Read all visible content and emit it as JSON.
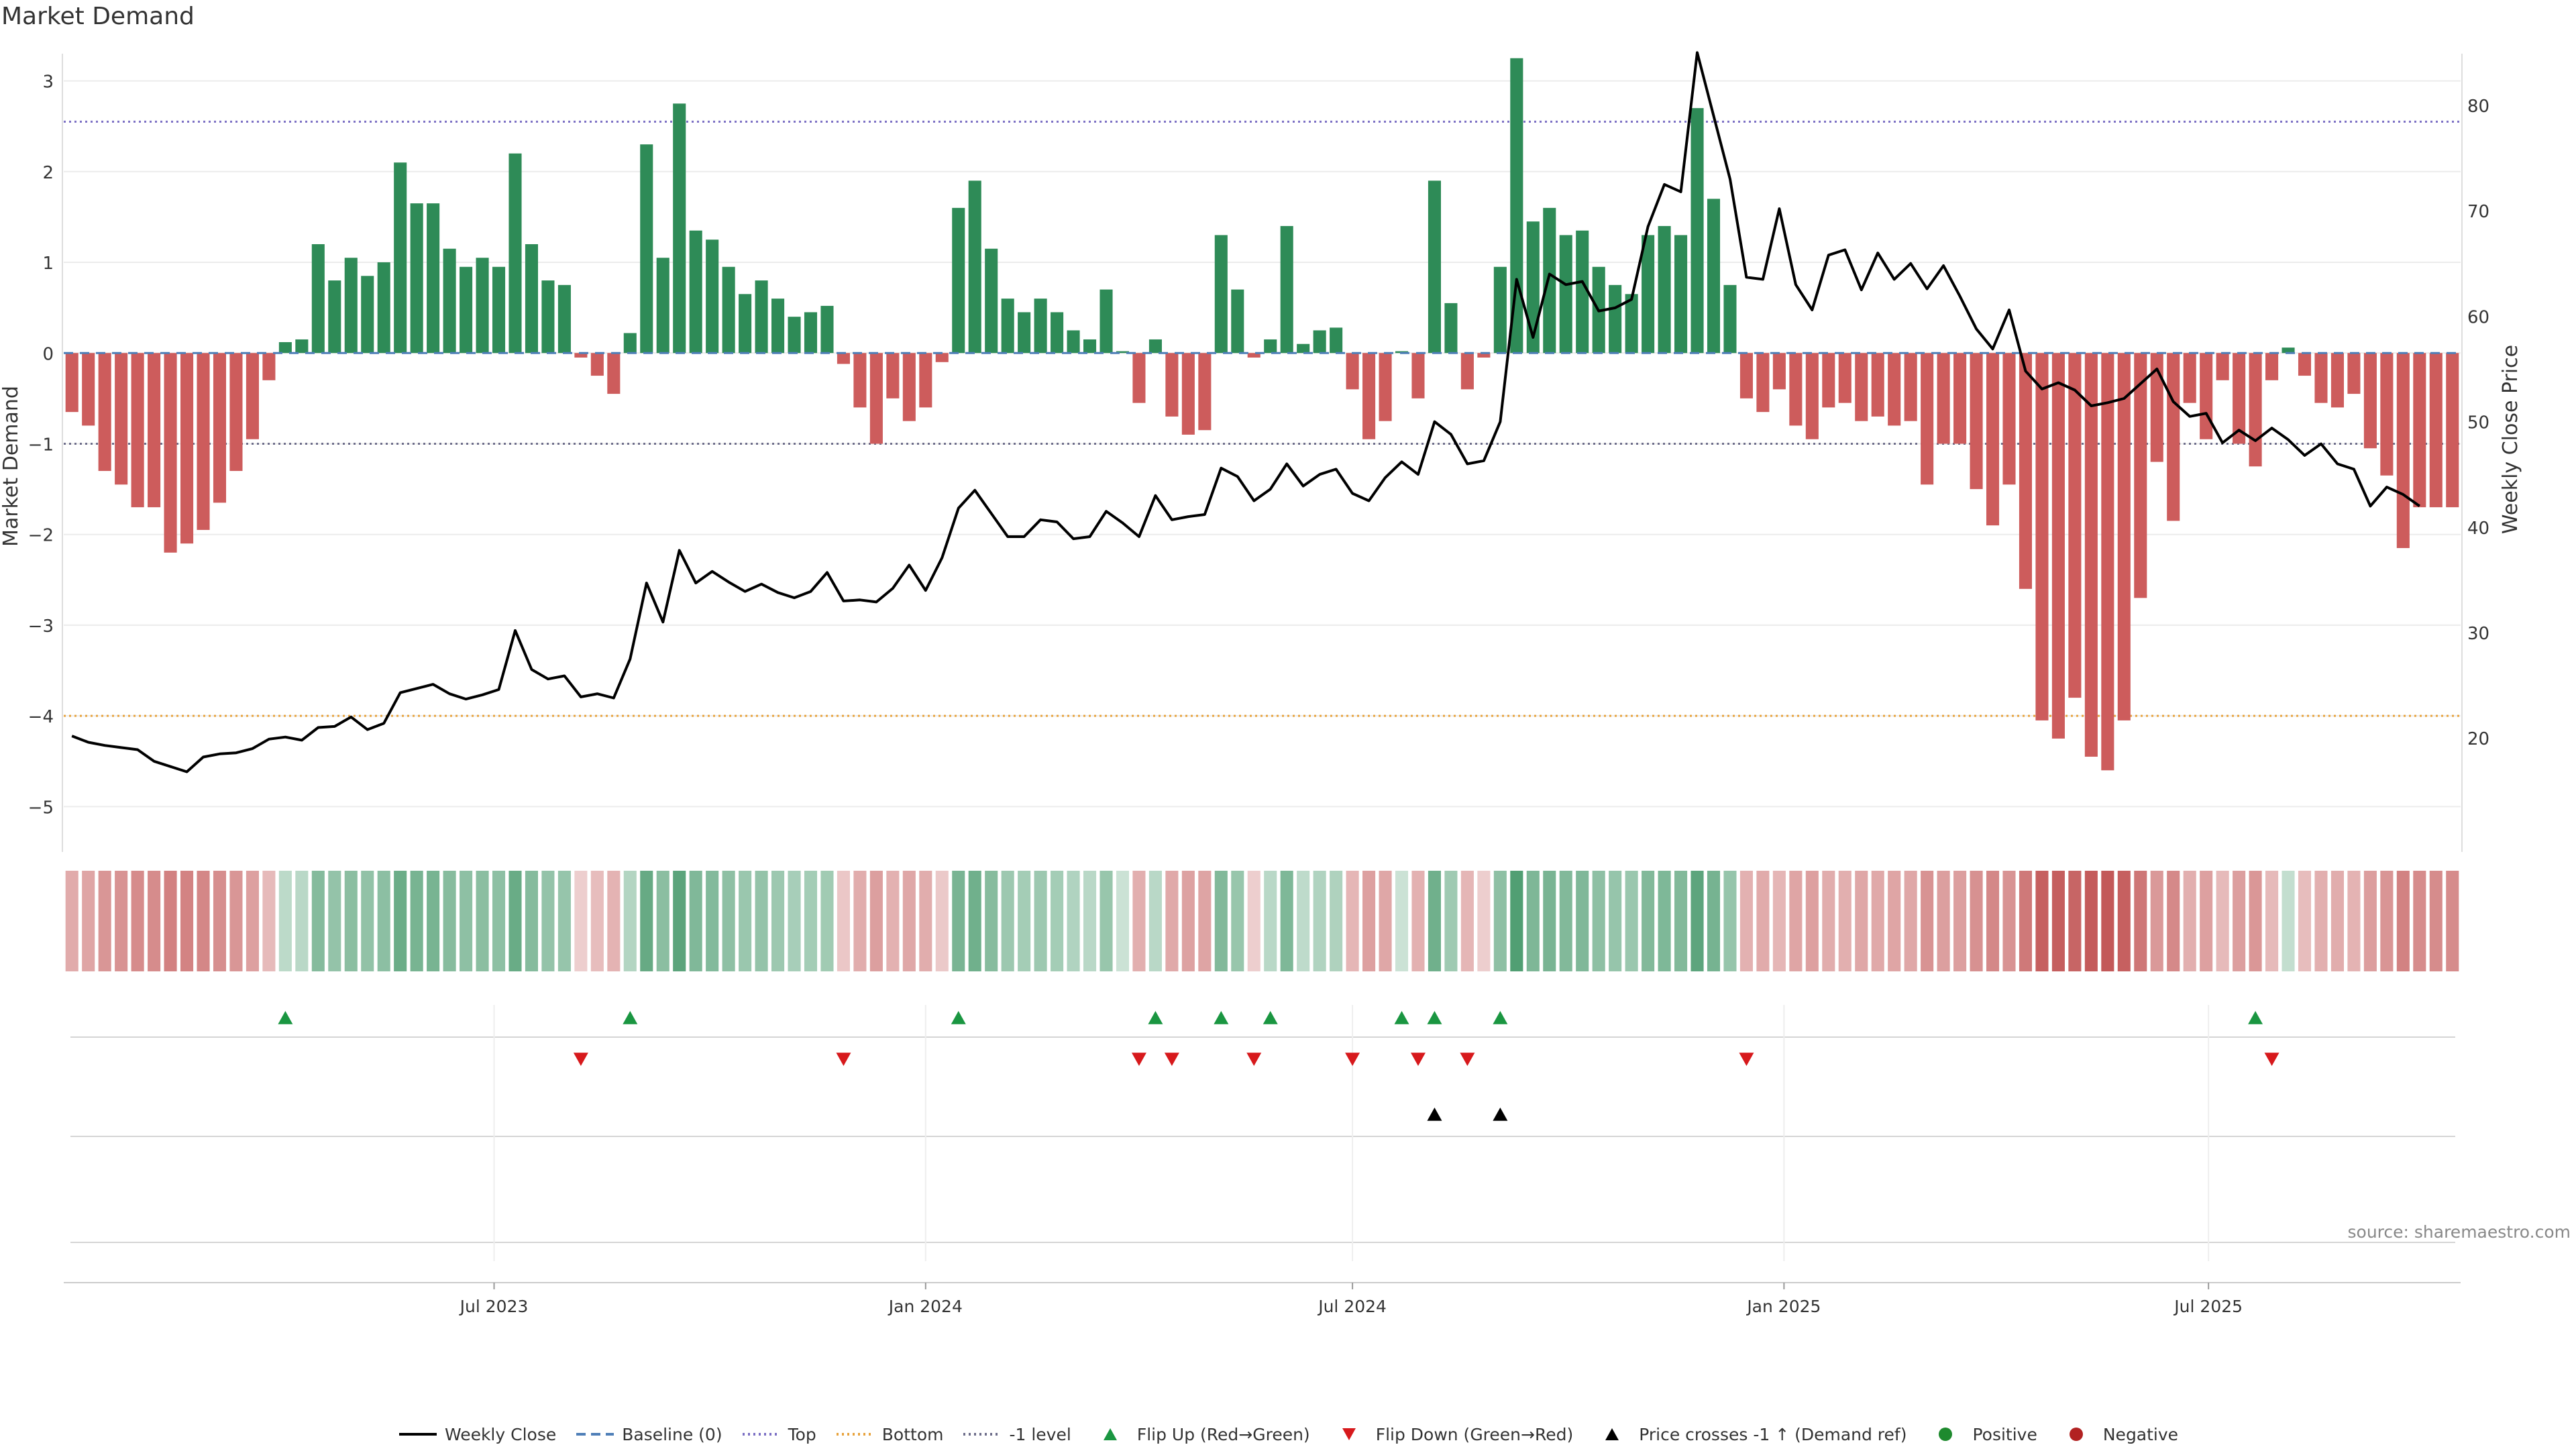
{
  "chart_data": {
    "type": "bar",
    "title": "Market Demand",
    "source": "source: sharemaestro.com",
    "left_axis": {
      "label": "Market Demand",
      "ylim": [
        -5.5,
        3.3
      ],
      "ticks": [
        3,
        2,
        1,
        0,
        -1,
        -2,
        -3,
        -4,
        -5
      ]
    },
    "right_axis": {
      "label": "Weekly Close Price",
      "ylim": [
        9.2,
        84.9
      ],
      "ticks": [
        80,
        70,
        60,
        50,
        40,
        30,
        20
      ]
    },
    "x_axis": {
      "start": "2023-01-02",
      "tick_labels": [
        "Jul 2023",
        "Jan 2024",
        "Jul 2024",
        "Jan 2025",
        "Jul 2025"
      ],
      "tick_dates": [
        "2023-07-01",
        "2024-01-01",
        "2024-07-01",
        "2025-01-01",
        "2025-07-01"
      ]
    },
    "reference_lines": [
      {
        "name": "Top",
        "value": 2.55,
        "color": "#7b6fc4",
        "dash": "dotted"
      },
      {
        "name": "Bottom",
        "value": -4.0,
        "color": "#e8a33d",
        "dash": "dotted"
      },
      {
        "name": "-1 level",
        "value": -1.0,
        "color": "#6d6d8a",
        "dash": "dotted"
      },
      {
        "name": "Baseline (0)",
        "value": 0,
        "color": "#4f7fb8",
        "dash": "dashed"
      }
    ],
    "colors": {
      "positive": "#2e8b57",
      "negative": "#cd5c5c",
      "price": "#000000",
      "flip_up": "#1a9641",
      "flip_down": "#d7191c",
      "cross": "#000000"
    },
    "demand": [
      -0.65,
      -0.8,
      -1.3,
      -1.45,
      -1.7,
      -1.7,
      -2.2,
      -2.1,
      -1.95,
      -1.65,
      -1.3,
      -0.95,
      -0.3,
      0.12,
      0.15,
      1.2,
      0.8,
      1.05,
      0.85,
      1.0,
      2.1,
      1.65,
      1.65,
      1.15,
      0.95,
      1.05,
      0.95,
      2.2,
      1.2,
      0.8,
      0.75,
      -0.05,
      -0.25,
      -0.45,
      0.22,
      2.3,
      1.05,
      2.75,
      1.35,
      1.25,
      0.95,
      0.65,
      0.8,
      0.6,
      0.4,
      0.45,
      0.52,
      -0.12,
      -0.6,
      -1.0,
      -0.5,
      -0.75,
      -0.6,
      -0.1,
      1.6,
      1.9,
      1.15,
      0.6,
      0.45,
      0.6,
      0.45,
      0.25,
      0.15,
      0.7,
      0.02,
      -0.55,
      0.15,
      -0.7,
      -0.9,
      -0.85,
      1.3,
      0.7,
      -0.05,
      0.15,
      1.4,
      0.1,
      0.25,
      0.28,
      -0.4,
      -0.95,
      -0.75,
      0.02,
      -0.5,
      1.9,
      0.55,
      -0.4,
      -0.05,
      0.95,
      3.25,
      1.45,
      1.6,
      1.3,
      1.35,
      0.95,
      0.75,
      0.65,
      1.3,
      1.4,
      1.3,
      2.7,
      1.7,
      0.75,
      -0.5,
      -0.65,
      -0.4,
      -0.8,
      -0.95,
      -0.6,
      -0.55,
      -0.75,
      -0.7,
      -0.8,
      -0.75,
      -1.45,
      -1.0,
      -1.0,
      -1.5,
      -1.9,
      -1.45,
      -2.6,
      -4.05,
      -4.25,
      -3.8,
      -4.45,
      -4.6,
      -4.05,
      -2.7,
      -1.2,
      -1.85,
      -0.55,
      -0.95,
      -0.3,
      -1.0,
      -1.25,
      -0.3,
      0.06,
      -0.25,
      -0.55,
      -0.6,
      -0.45,
      -1.05,
      -1.35,
      -2.15,
      -1.7,
      -1.7,
      -1.7
    ],
    "weekly_close": [
      20.2,
      19.6,
      19.3,
      19.1,
      18.9,
      17.8,
      17.3,
      16.8,
      18.2,
      18.5,
      18.6,
      19.0,
      19.9,
      20.1,
      19.8,
      21.0,
      21.1,
      22.0,
      20.8,
      21.4,
      24.3,
      24.7,
      25.1,
      24.2,
      23.7,
      24.1,
      24.6,
      30.2,
      26.5,
      25.6,
      25.9,
      23.9,
      24.2,
      23.8,
      27.5,
      34.7,
      31.0,
      37.8,
      34.7,
      35.8,
      34.8,
      33.9,
      34.6,
      33.8,
      33.3,
      33.9,
      35.7,
      33.0,
      33.1,
      32.9,
      34.2,
      36.4,
      34.0,
      37.1,
      41.8,
      43.5,
      41.3,
      39.1,
      39.1,
      40.7,
      40.5,
      38.9,
      39.1,
      41.5,
      40.4,
      39.1,
      43.0,
      40.7,
      41.0,
      41.2,
      45.6,
      44.8,
      42.5,
      43.6,
      46.0,
      43.9,
      45.0,
      45.5,
      43.2,
      42.5,
      44.7,
      46.2,
      45.0,
      50.0,
      48.8,
      46.0,
      46.3,
      50.0,
      63.5,
      58.0,
      64.0,
      63.0,
      63.3,
      60.5,
      60.8,
      61.6,
      68.5,
      72.5,
      71.8,
      85.0,
      79.0,
      73.0,
      63.7,
      63.5,
      70.2,
      63.0,
      60.6,
      65.8,
      66.3,
      62.5,
      66.0,
      63.5,
      65.0,
      62.6,
      64.8,
      61.9,
      58.8,
      56.9,
      60.6,
      54.8,
      53.1,
      53.7,
      53.0,
      51.5,
      51.8,
      52.2,
      53.6,
      55.0,
      51.9,
      50.5,
      50.8,
      48.0,
      49.2,
      48.2,
      49.4,
      48.3,
      46.8,
      47.9,
      46.0,
      45.5,
      42.0,
      43.8,
      43.1,
      42.0
    ],
    "flip_up_weeks": [
      13,
      34,
      54,
      66,
      70,
      73,
      81,
      83,
      87,
      133
    ],
    "flip_down_weeks": [
      31,
      47,
      65,
      67,
      72,
      78,
      82,
      85,
      102,
      134
    ],
    "price_cross_weeks": [
      83,
      87
    ]
  },
  "legend": {
    "items": [
      {
        "label": "Weekly Close",
        "symbol": "line"
      },
      {
        "label": "Baseline (0)",
        "symbol": "dashed"
      },
      {
        "label": "Top",
        "symbol": "dotted-purple"
      },
      {
        "label": "Bottom",
        "symbol": "dotted-orange"
      },
      {
        "label": "-1 level",
        "symbol": "dotted-gray"
      },
      {
        "label": "Flip Up (Red→Green)",
        "symbol": "triangle-up-green"
      },
      {
        "label": "Flip Down (Green→Red)",
        "symbol": "triangle-down-red"
      },
      {
        "label": "Price crosses -1 ↑ (Demand ref)",
        "symbol": "triangle-up-black"
      },
      {
        "label": "Positive",
        "symbol": "dot-green"
      },
      {
        "label": "Negative",
        "symbol": "dot-red"
      }
    ]
  }
}
